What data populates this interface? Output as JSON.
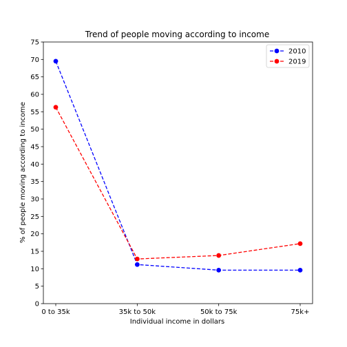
{
  "chart_data": {
    "type": "line",
    "title": "Trend of people moving according to income",
    "xlabel": "Individual income in dollars",
    "ylabel": "% of people moving according to income",
    "categories": [
      "0 to 35k",
      "35k to 50k",
      "50k to 75k",
      "75k+"
    ],
    "ylim": [
      0,
      75
    ],
    "yticks": [
      0,
      5,
      10,
      15,
      20,
      25,
      30,
      35,
      40,
      45,
      50,
      55,
      60,
      65,
      70,
      75
    ],
    "grid": false,
    "legend": "top-right",
    "series": [
      {
        "name": "2010",
        "color": "#0000ff",
        "line_style": "dashed",
        "marker": "circle",
        "values": [
          69.5,
          11.2,
          9.6,
          9.6
        ]
      },
      {
        "name": "2019",
        "color": "#ff0000",
        "line_style": "dashed",
        "marker": "circle",
        "values": [
          56.3,
          12.8,
          13.8,
          17.2
        ]
      }
    ]
  }
}
